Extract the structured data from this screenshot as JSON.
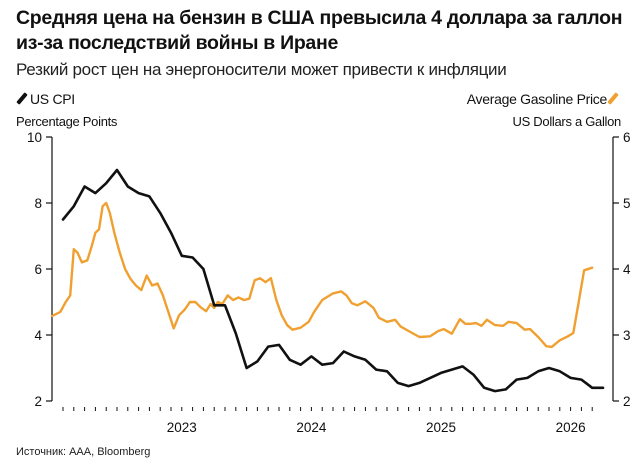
{
  "header": {
    "title": "Средняя цена на бензин в США превысила 4 доллара за галлон из-за последствий войны в Иране",
    "subtitle": "Резкий рост цен на энергоносители может привести к инфляции"
  },
  "footer": {
    "source": "Источник: AAA, Bloomberg"
  },
  "colors": {
    "cpi": "#111111",
    "gasoline": "#f0a030",
    "axis": "#111111"
  },
  "chart_data": {
    "type": "line",
    "title": "Средняя цена на бензин в США превысила 4 доллара за галлон из-за последствий войны в Иране",
    "x_axis": {
      "start": "2022-02",
      "end": "2026-03",
      "tick_labels": [
        "2023",
        "2024",
        "2025",
        "2026"
      ],
      "minor_ticks": "monthly"
    },
    "left_axis": {
      "label": "Percentage Points",
      "range": [
        2,
        10
      ],
      "ticks": [
        "2",
        "4",
        "6",
        "8",
        "10"
      ]
    },
    "right_axis": {
      "label": "US Dollars a Gallon",
      "range": [
        2,
        6
      ],
      "ticks": [
        "2",
        "3",
        "4",
        "5",
        "6"
      ]
    },
    "legend": {
      "left": "US CPI",
      "right": "Average Gasoline Price"
    },
    "series": [
      {
        "name": "US CPI",
        "axis": "left",
        "frequency": "monthly",
        "start": "2022-02",
        "values": [
          7.5,
          7.9,
          8.5,
          8.3,
          8.6,
          9.0,
          8.5,
          8.3,
          8.2,
          7.7,
          7.1,
          6.4,
          6.35,
          6.0,
          4.9,
          4.9,
          4.05,
          3.0,
          3.2,
          3.65,
          3.7,
          3.25,
          3.1,
          3.35,
          3.1,
          3.15,
          3.5,
          3.35,
          3.25,
          2.95,
          2.9,
          2.55,
          2.45,
          2.55,
          2.7,
          2.85,
          2.95,
          3.05,
          2.8,
          2.4,
          2.3,
          2.35,
          2.65,
          2.7,
          2.9,
          3.0,
          2.9,
          2.7,
          2.65,
          2.4,
          2.4
        ]
      },
      {
        "name": "Average Gasoline Price",
        "axis": "right",
        "frequency": "weekly-approx",
        "points": [
          [
            "2022-01",
            3.29
          ],
          [
            "2022-02",
            3.35
          ],
          [
            "2022-02",
            3.5
          ],
          [
            "2022-03",
            3.6
          ],
          [
            "2022-03",
            4.3
          ],
          [
            "2022-03",
            4.25
          ],
          [
            "2022-04",
            4.1
          ],
          [
            "2022-04",
            4.13
          ],
          [
            "2022-05",
            4.35
          ],
          [
            "2022-05",
            4.55
          ],
          [
            "2022-05",
            4.6
          ],
          [
            "2022-06",
            4.95
          ],
          [
            "2022-06",
            5.0
          ],
          [
            "2022-06",
            4.85
          ],
          [
            "2022-07",
            4.55
          ],
          [
            "2022-07",
            4.25
          ],
          [
            "2022-08",
            4.0
          ],
          [
            "2022-08",
            3.85
          ],
          [
            "2022-09",
            3.75
          ],
          [
            "2022-09",
            3.68
          ],
          [
            "2022-10",
            3.9
          ],
          [
            "2022-10",
            3.75
          ],
          [
            "2022-11",
            3.78
          ],
          [
            "2022-11",
            3.6
          ],
          [
            "2022-12",
            3.35
          ],
          [
            "2022-12",
            3.1
          ],
          [
            "2023-01",
            3.3
          ],
          [
            "2023-01",
            3.38
          ],
          [
            "2023-02",
            3.5
          ],
          [
            "2023-02",
            3.5
          ],
          [
            "2023-03",
            3.42
          ],
          [
            "2023-03",
            3.36
          ],
          [
            "2023-04",
            3.47
          ],
          [
            "2023-04",
            3.41
          ],
          [
            "2023-04",
            3.5
          ],
          [
            "2023-05",
            3.47
          ],
          [
            "2023-05",
            3.6
          ],
          [
            "2023-06",
            3.53
          ],
          [
            "2023-06",
            3.57
          ],
          [
            "2023-07",
            3.53
          ],
          [
            "2023-07",
            3.55
          ],
          [
            "2023-08",
            3.83
          ],
          [
            "2023-08",
            3.86
          ],
          [
            "2023-09",
            3.8
          ],
          [
            "2023-09",
            3.86
          ],
          [
            "2023-10",
            3.53
          ],
          [
            "2023-10",
            3.3
          ],
          [
            "2023-11",
            3.15
          ],
          [
            "2023-11",
            3.08
          ],
          [
            "2023-12",
            3.11
          ],
          [
            "2024-01",
            3.2
          ],
          [
            "2024-01",
            3.35
          ],
          [
            "2024-02",
            3.53
          ],
          [
            "2024-03",
            3.63
          ],
          [
            "2024-04",
            3.66
          ],
          [
            "2024-04",
            3.6
          ],
          [
            "2024-05",
            3.48
          ],
          [
            "2024-05",
            3.45
          ],
          [
            "2024-06",
            3.51
          ],
          [
            "2024-07",
            3.41
          ],
          [
            "2024-07",
            3.26
          ],
          [
            "2024-08",
            3.2
          ],
          [
            "2024-09",
            3.23
          ],
          [
            "2024-09",
            3.13
          ],
          [
            "2024-10",
            3.06
          ],
          [
            "2024-11",
            2.97
          ],
          [
            "2024-12",
            2.98
          ],
          [
            "2025-01",
            3.06
          ],
          [
            "2025-01",
            3.09
          ],
          [
            "2025-02",
            3.02
          ],
          [
            "2025-03",
            3.24
          ],
          [
            "2025-03",
            3.17
          ],
          [
            "2025-04",
            3.17
          ],
          [
            "2025-04",
            3.18
          ],
          [
            "2025-05",
            3.14
          ],
          [
            "2025-05",
            3.23
          ],
          [
            "2025-06",
            3.15
          ],
          [
            "2025-07",
            3.14
          ],
          [
            "2025-07",
            3.2
          ],
          [
            "2025-08",
            3.18
          ],
          [
            "2025-09",
            3.08
          ],
          [
            "2025-09",
            3.09
          ],
          [
            "2025-10",
            2.97
          ],
          [
            "2025-11",
            2.83
          ],
          [
            "2025-11",
            2.82
          ],
          [
            "2025-12",
            2.92
          ],
          [
            "2026-01",
            2.98
          ],
          [
            "2026-01",
            3.03
          ],
          [
            "2026-02",
            3.5
          ],
          [
            "2026-02",
            3.98
          ],
          [
            "2026-03",
            4.02
          ]
        ]
      }
    ],
    "grid": false
  }
}
